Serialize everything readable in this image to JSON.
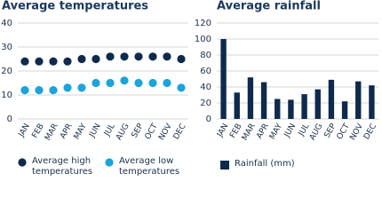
{
  "chart_data": [
    {
      "type": "dot",
      "title": "Average temperatures",
      "categories": [
        "JAN",
        "FEB",
        "MAR",
        "APR",
        "MAY",
        "JUN",
        "JUL",
        "AUG",
        "SEP",
        "OCT",
        "NOV",
        "DEC"
      ],
      "series": [
        {
          "name": "Average high temperatures",
          "color": "#0e2a4c",
          "values": [
            24,
            24,
            24,
            24,
            25,
            25,
            26,
            26,
            26,
            26,
            26,
            25
          ]
        },
        {
          "name": "Average low temperatures",
          "color": "#1ba3dc",
          "values": [
            12,
            12,
            12,
            13,
            13,
            15,
            15,
            16,
            15,
            15,
            15,
            13
          ]
        }
      ],
      "ylim": [
        0,
        40
      ],
      "yticks": [
        0,
        10,
        20,
        30,
        40
      ],
      "grid": true
    },
    {
      "type": "bar",
      "title": "Average rainfall",
      "categories": [
        "JAN",
        "FEB",
        "MAR",
        "APR",
        "MAY",
        "JUN",
        "JUL",
        "AUG",
        "SEP",
        "OCT",
        "NOV",
        "DEC"
      ],
      "series": [
        {
          "name": "Rainfall (mm)",
          "color": "#0e2a4c",
          "values": [
            100,
            33,
            52,
            46,
            25,
            24,
            31,
            37,
            49,
            22,
            47,
            42
          ]
        }
      ],
      "ylim": [
        0,
        120
      ],
      "yticks": [
        0,
        20,
        40,
        60,
        80,
        100,
        120
      ],
      "grid": true
    }
  ]
}
